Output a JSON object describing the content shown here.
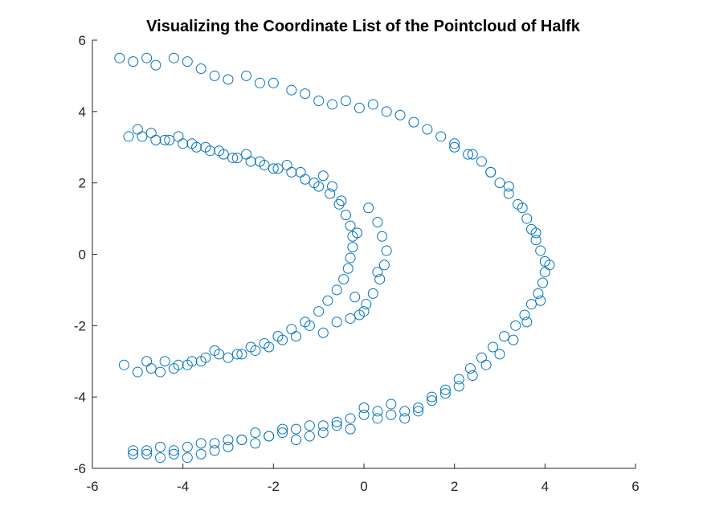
{
  "chart_data": {
    "type": "scatter",
    "title": "Visualizing the Coordinate List of the Pointcloud of Halfk",
    "xlabel": "",
    "ylabel": "",
    "xlim": [
      -6,
      6
    ],
    "ylim": [
      -6,
      6
    ],
    "xticks": [
      -6,
      -4,
      -2,
      0,
      2,
      4,
      6
    ],
    "yticks": [
      -6,
      -4,
      -2,
      0,
      2,
      4,
      6
    ],
    "grid": false,
    "legend": "none",
    "marker": "open-circle",
    "series_color": "#0072BD",
    "series": [
      {
        "x": [
          -5.4,
          -5.1,
          -4.8,
          -4.6,
          -4.2,
          -3.9,
          -3.6,
          -3.3,
          -3.0,
          -2.6,
          -2.3,
          -2.0,
          -1.6,
          -1.3,
          -1.0,
          -0.7,
          -0.4,
          -0.1,
          0.2,
          0.5,
          0.8,
          1.1,
          1.4,
          1.7,
          2.0,
          2.3,
          2.6,
          2.8,
          3.0,
          3.2,
          3.4,
          3.6,
          3.7,
          3.8,
          3.9,
          4.0,
          4.0,
          3.95,
          3.85,
          3.7,
          3.55,
          3.35,
          3.1,
          2.85,
          2.6,
          2.35,
          2.1,
          1.8,
          1.5,
          1.2,
          0.9,
          0.6,
          0.3,
          0.0,
          -0.3,
          -0.6,
          -0.9,
          -1.2,
          -1.5,
          -1.8,
          -2.1,
          -2.4,
          -2.7,
          -3.0,
          -3.3,
          -3.6,
          -3.9,
          -4.2,
          -4.5,
          -4.8,
          -5.1,
          -5.3,
          -5.0,
          -4.7,
          -4.4,
          -4.1,
          -3.8,
          -3.5,
          -3.2,
          -2.8,
          -2.5,
          -2.2,
          -1.9,
          -1.6,
          -1.3,
          -1.0,
          -0.8,
          -0.6,
          -0.45,
          -0.35,
          -0.3,
          -0.25,
          -0.25,
          -0.3,
          -0.4,
          -0.55,
          -0.75,
          -1.0,
          -1.3,
          -1.6,
          -1.9,
          -2.2,
          -2.5,
          -2.8,
          -3.1,
          -3.4,
          -3.7,
          -4.0,
          -4.3,
          -4.6,
          -4.9,
          -5.2,
          0.3,
          0.4,
          0.5,
          0.45,
          0.35,
          0.2,
          0.05,
          -0.1,
          -0.2,
          -0.15,
          0.1,
          0.3,
          -0.5,
          -0.7,
          -0.9,
          -1.1,
          -1.4,
          -1.7,
          -2.0,
          -2.3,
          -2.6,
          -2.9,
          -3.2,
          -3.5,
          -3.8,
          -4.1,
          -4.4,
          -4.7,
          -5.0,
          0.0,
          -0.3,
          -0.6,
          -0.9,
          -1.2,
          -1.5,
          -1.8,
          -2.1,
          -2.4,
          -2.7,
          -3.0,
          -3.3,
          -3.6,
          -3.9,
          -4.2,
          -4.5,
          -4.8,
          2.0,
          2.4,
          2.8,
          3.2,
          3.5,
          3.8,
          4.1,
          3.9,
          3.6,
          3.3,
          3.0,
          2.7,
          2.4,
          2.1,
          1.8,
          1.5,
          1.2,
          0.9,
          0.6,
          0.3,
          0.0,
          -0.3,
          -0.6,
          -0.9,
          -1.2,
          -1.5,
          -1.8,
          -2.1,
          -2.4,
          -2.7,
          -3.0,
          -3.3,
          -3.6,
          -3.9,
          -4.2,
          -4.5,
          -4.8,
          -5.1
        ],
        "y": [
          5.5,
          5.4,
          5.5,
          5.3,
          5.5,
          5.4,
          5.2,
          5.0,
          4.9,
          5.0,
          4.8,
          4.8,
          4.6,
          4.5,
          4.3,
          4.2,
          4.3,
          4.1,
          4.2,
          4.0,
          3.9,
          3.7,
          3.5,
          3.3,
          3.0,
          2.8,
          2.6,
          2.3,
          2.0,
          1.7,
          1.4,
          1.0,
          0.7,
          0.4,
          0.1,
          -0.2,
          -0.5,
          -0.8,
          -1.1,
          -1.4,
          -1.7,
          -2.0,
          -2.3,
          -2.6,
          -2.9,
          -3.2,
          -3.5,
          -3.8,
          -4.0,
          -4.3,
          -4.4,
          -4.5,
          -4.6,
          -4.5,
          -4.6,
          -4.7,
          -4.8,
          -4.8,
          -4.9,
          -5.0,
          -5.1,
          -5.0,
          -5.2,
          -5.2,
          -5.3,
          -5.3,
          -5.4,
          -5.5,
          -5.4,
          -5.5,
          -5.6,
          -3.1,
          -3.3,
          -3.2,
          -3.0,
          -3.1,
          -3.0,
          -2.9,
          -2.8,
          -2.8,
          -2.6,
          -2.5,
          -2.3,
          -2.1,
          -1.9,
          -1.6,
          -1.3,
          -1.0,
          -0.7,
          -0.4,
          -0.1,
          0.2,
          0.5,
          0.8,
          1.1,
          1.4,
          1.7,
          1.9,
          2.1,
          2.3,
          2.4,
          2.5,
          2.6,
          2.7,
          2.8,
          2.9,
          3.0,
          3.1,
          3.2,
          3.2,
          3.3,
          3.3,
          0.9,
          0.5,
          0.1,
          -0.3,
          -0.7,
          -1.1,
          -1.4,
          -1.7,
          -1.2,
          0.6,
          1.3,
          -0.5,
          1.5,
          1.9,
          2.2,
          2.0,
          2.3,
          2.5,
          2.4,
          2.6,
          2.8,
          2.7,
          2.9,
          3.0,
          3.1,
          3.3,
          3.2,
          3.4,
          3.5,
          -1.6,
          -1.8,
          -1.9,
          -2.2,
          -2.0,
          -2.3,
          -2.4,
          -2.6,
          -2.7,
          -2.8,
          -2.9,
          -2.7,
          -3.0,
          -3.1,
          -3.2,
          -3.3,
          -3.0,
          3.1,
          2.8,
          2.3,
          1.9,
          1.3,
          0.6,
          -0.3,
          -1.3,
          -1.9,
          -2.4,
          -2.8,
          -3.1,
          -3.4,
          -3.7,
          -3.9,
          -4.1,
          -4.4,
          -4.6,
          -4.2,
          -4.4,
          -4.3,
          -4.9,
          -4.8,
          -5.0,
          -5.1,
          -5.2,
          -4.9,
          -5.1,
          -5.3,
          -5.2,
          -5.4,
          -5.5,
          -5.6,
          -5.7,
          -5.6,
          -5.7,
          -5.6,
          -5.5
        ]
      }
    ]
  }
}
